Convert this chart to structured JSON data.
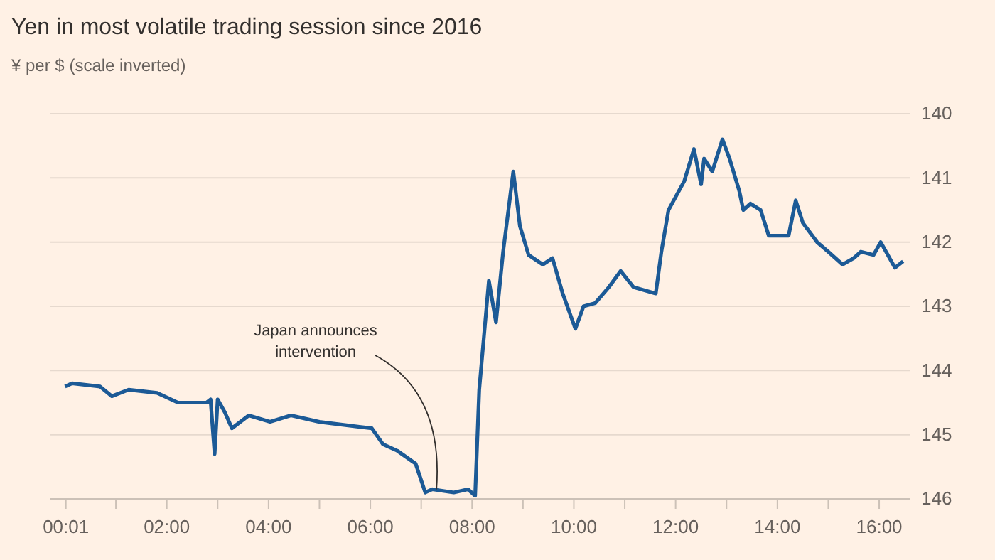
{
  "chart_data": {
    "type": "line",
    "title": "Yen in most volatile trading session since 2016",
    "subtitle": "¥ per $ (scale inverted)",
    "x": [
      0,
      0.14,
      0.69,
      0.92,
      1.25,
      1.81,
      2.22,
      2.78,
      2.86,
      2.94,
      3.0,
      3.14,
      3.28,
      3.61,
      4.03,
      4.44,
      5.0,
      6.03,
      6.25,
      6.53,
      6.89,
      7.08,
      7.22,
      7.64,
      7.92,
      8.06,
      8.14,
      8.33,
      8.47,
      8.61,
      8.81,
      8.94,
      9.11,
      9.39,
      9.58,
      9.78,
      10.03,
      10.19,
      10.42,
      10.69,
      10.92,
      11.17,
      11.61,
      11.72,
      11.86,
      12.17,
      12.36,
      12.5,
      12.56,
      12.72,
      12.92,
      13.06,
      13.25,
      13.33,
      13.47,
      13.67,
      13.83,
      14.03,
      14.22,
      14.36,
      14.5,
      14.78,
      15.0,
      15.28,
      15.5,
      15.64,
      15.89,
      16.03,
      16.17,
      16.31,
      16.47
    ],
    "series": [
      {
        "color": "#1c5a96",
        "values": [
          144.25,
          144.2,
          144.25,
          144.4,
          144.3,
          144.35,
          144.5,
          144.5,
          144.45,
          145.3,
          144.45,
          144.65,
          144.9,
          144.7,
          144.8,
          144.7,
          144.8,
          144.9,
          145.15,
          145.25,
          145.45,
          145.9,
          145.85,
          145.9,
          145.85,
          145.95,
          144.3,
          142.6,
          143.25,
          142.15,
          140.9,
          141.75,
          142.2,
          142.35,
          142.25,
          142.8,
          143.35,
          143.0,
          142.95,
          142.7,
          142.45,
          142.7,
          142.8,
          142.15,
          141.5,
          141.05,
          140.55,
          141.1,
          140.7,
          140.9,
          140.4,
          140.7,
          141.2,
          141.5,
          141.4,
          141.5,
          141.9,
          141.9,
          141.9,
          141.35,
          141.7,
          142.0,
          142.15,
          142.35,
          142.25,
          142.15,
          142.2,
          142.0,
          142.2,
          142.4,
          142.3
        ]
      }
    ],
    "xlim": [
      -0.3,
      16.6
    ],
    "ylim": [
      146,
      140
    ],
    "xticks": [
      {
        "value": 0.0167,
        "label": "00:01"
      },
      {
        "value": 1,
        "label": null
      },
      {
        "value": 2,
        "label": "02:00"
      },
      {
        "value": 3,
        "label": null
      },
      {
        "value": 4,
        "label": "04:00"
      },
      {
        "value": 5,
        "label": null
      },
      {
        "value": 6,
        "label": "06:00"
      },
      {
        "value": 7,
        "label": null
      },
      {
        "value": 8,
        "label": "08:00"
      },
      {
        "value": 9,
        "label": null
      },
      {
        "value": 10,
        "label": "10:00"
      },
      {
        "value": 11,
        "label": null
      },
      {
        "value": 12,
        "label": "12:00"
      },
      {
        "value": 13,
        "label": null
      },
      {
        "value": 14,
        "label": "14:00"
      },
      {
        "value": 15,
        "label": null
      },
      {
        "value": 16,
        "label": "16:00"
      }
    ],
    "yticks": [
      140,
      141,
      142,
      143,
      144,
      145,
      146
    ],
    "grid": "y",
    "line_style": "solid",
    "marker": "none",
    "annotations": [
      {
        "text": "Japan announces intervention",
        "x": 7.3,
        "y": 145.85
      }
    ]
  }
}
